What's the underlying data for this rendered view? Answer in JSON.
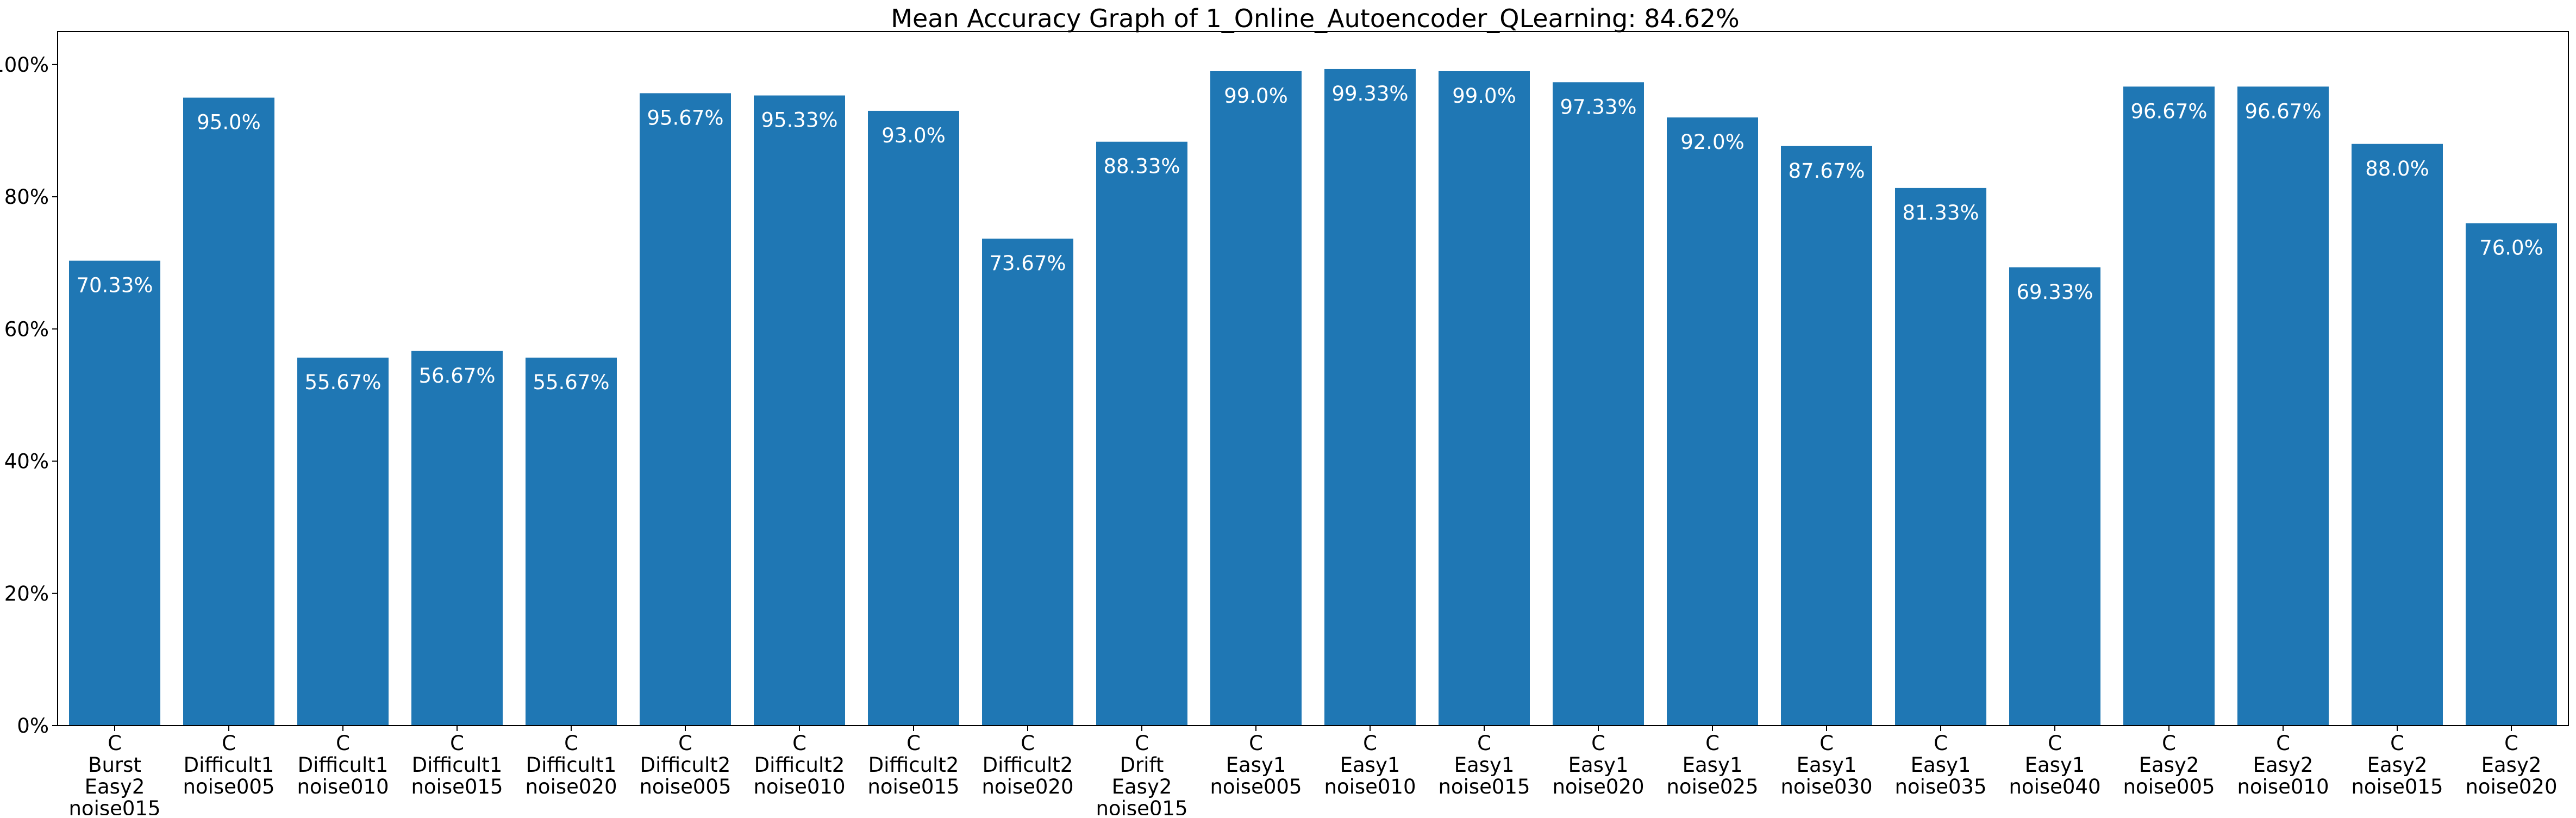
{
  "chart_data": {
    "type": "bar",
    "title": "Mean Accuracy Graph of 1_Online_Autoencoder_QLearning: 84.62%",
    "xlabel": "",
    "ylabel": "",
    "ylim": [
      0,
      105
    ],
    "grid": false,
    "bar_color": "#1f77b4",
    "y_ticks": [
      {
        "value": 0,
        "label": "0%"
      },
      {
        "value": 20,
        "label": "20%"
      },
      {
        "value": 40,
        "label": "40%"
      },
      {
        "value": 60,
        "label": "60%"
      },
      {
        "value": 80,
        "label": "80%"
      },
      {
        "value": 100,
        "label": "100%"
      }
    ],
    "categories": [
      [
        "C",
        "Burst",
        "Easy2",
        "noise015"
      ],
      [
        "C",
        "Difficult1",
        "noise005"
      ],
      [
        "C",
        "Difficult1",
        "noise010"
      ],
      [
        "C",
        "Difficult1",
        "noise015"
      ],
      [
        "C",
        "Difficult1",
        "noise020"
      ],
      [
        "C",
        "Difficult2",
        "noise005"
      ],
      [
        "C",
        "Difficult2",
        "noise010"
      ],
      [
        "C",
        "Difficult2",
        "noise015"
      ],
      [
        "C",
        "Difficult2",
        "noise020"
      ],
      [
        "C",
        "Drift",
        "Easy2",
        "noise015"
      ],
      [
        "C",
        "Easy1",
        "noise005"
      ],
      [
        "C",
        "Easy1",
        "noise010"
      ],
      [
        "C",
        "Easy1",
        "noise015"
      ],
      [
        "C",
        "Easy1",
        "noise020"
      ],
      [
        "C",
        "Easy1",
        "noise025"
      ],
      [
        "C",
        "Easy1",
        "noise030"
      ],
      [
        "C",
        "Easy1",
        "noise035"
      ],
      [
        "C",
        "Easy1",
        "noise040"
      ],
      [
        "C",
        "Easy2",
        "noise005"
      ],
      [
        "C",
        "Easy2",
        "noise010"
      ],
      [
        "C",
        "Easy2",
        "noise015"
      ],
      [
        "C",
        "Easy2",
        "noise020"
      ]
    ],
    "values": [
      70.33,
      95.0,
      55.67,
      56.67,
      55.67,
      95.67,
      95.33,
      93.0,
      73.67,
      88.33,
      99.0,
      99.33,
      99.0,
      97.33,
      92.0,
      87.67,
      81.33,
      69.33,
      96.67,
      96.67,
      88.0,
      76.0
    ],
    "value_labels": [
      "70.33%",
      "95.0%",
      "55.67%",
      "56.67%",
      "55.67%",
      "95.67%",
      "95.33%",
      "93.0%",
      "73.67%",
      "88.33%",
      "99.0%",
      "99.33%",
      "99.0%",
      "97.33%",
      "92.0%",
      "87.67%",
      "81.33%",
      "69.33%",
      "96.67%",
      "96.67%",
      "88.0%",
      "76.0%"
    ]
  }
}
